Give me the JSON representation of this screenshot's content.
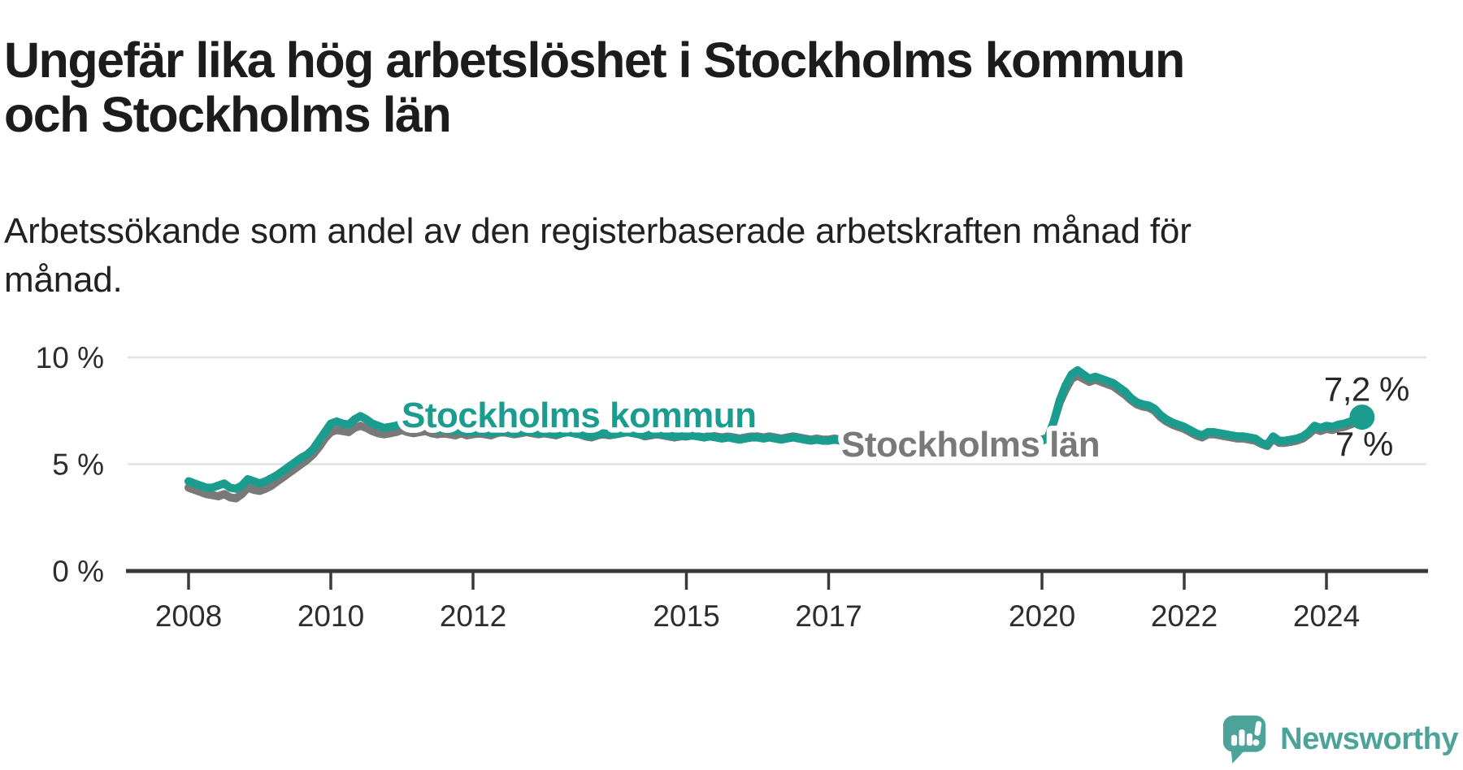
{
  "header": {
    "title_lines": [
      "Ungefär lika hög arbetslöshet i Stockholms kommun",
      "och Stockholms län"
    ],
    "subtitle_lines": [
      "Arbetssökande som andel av den registerbaserade arbetskraften månad för",
      "månad."
    ]
  },
  "chart_data": {
    "type": "line",
    "unit": "%",
    "x_start_year": 2008,
    "points_per_year": 12,
    "x_range": [
      2008,
      2024.5
    ],
    "ylim": [
      0,
      10.5
    ],
    "grid": "horizontal",
    "legend_position": "inline-labels",
    "y_ticks": [
      {
        "value": 10,
        "label": "10 %"
      },
      {
        "value": 5,
        "label": "5 %"
      },
      {
        "value": 0,
        "label": "0 %"
      }
    ],
    "x_ticks": [
      {
        "year": 2008,
        "label": "2008"
      },
      {
        "year": 2010,
        "label": "2010"
      },
      {
        "year": 2012,
        "label": "2012"
      },
      {
        "year": 2015,
        "label": "2015"
      },
      {
        "year": 2017,
        "label": "2017"
      },
      {
        "year": 2020,
        "label": "2020"
      },
      {
        "year": 2022,
        "label": "2022"
      },
      {
        "year": 2024,
        "label": "2024"
      }
    ],
    "series": [
      {
        "id": "kommun",
        "name": "Stockholms kommun",
        "color": "#1A9D8E",
        "values": [
          4.2,
          4.1,
          4.0,
          3.9,
          3.9,
          4.0,
          4.1,
          3.9,
          3.85,
          4.0,
          4.3,
          4.2,
          4.1,
          4.2,
          4.35,
          4.5,
          4.7,
          4.9,
          5.1,
          5.3,
          5.45,
          5.7,
          6.1,
          6.5,
          6.9,
          7.0,
          6.9,
          6.85,
          7.1,
          7.25,
          7.1,
          6.9,
          6.8,
          6.7,
          6.75,
          6.8,
          6.9,
          6.8,
          6.7,
          6.75,
          6.8,
          6.7,
          6.6,
          6.65,
          6.6,
          6.55,
          6.6,
          6.5,
          6.5,
          6.55,
          6.5,
          6.45,
          6.5,
          6.55,
          6.5,
          6.45,
          6.5,
          6.55,
          6.5,
          6.45,
          6.5,
          6.45,
          6.4,
          6.45,
          6.5,
          6.45,
          6.4,
          6.35,
          6.3,
          6.4,
          6.45,
          6.4,
          6.4,
          6.45,
          6.5,
          6.45,
          6.4,
          6.35,
          6.4,
          6.45,
          6.4,
          6.35,
          6.3,
          6.35,
          6.3,
          6.35,
          6.3,
          6.25,
          6.3,
          6.25,
          6.2,
          6.25,
          6.2,
          6.15,
          6.2,
          6.25,
          6.25,
          6.2,
          6.25,
          6.2,
          6.15,
          6.2,
          6.25,
          6.2,
          6.15,
          6.1,
          6.15,
          6.1,
          6.1,
          6.15,
          6.1,
          6.05,
          6.1,
          6.15,
          6.1,
          6.05,
          6.0,
          6.05,
          6.1,
          6.05,
          6.0,
          6.05,
          6.0,
          5.95,
          6.0,
          6.05,
          6.0,
          5.95,
          6.0,
          6.05,
          6.0,
          6.0,
          6.0,
          6.05,
          6.1,
          6.05,
          6.0,
          6.05,
          6.1,
          6.15,
          6.1,
          6.1,
          6.15,
          6.1,
          6.1,
          6.2,
          7.0,
          8.0,
          8.7,
          9.2,
          9.4,
          9.2,
          9.0,
          9.1,
          9.0,
          8.9,
          8.8,
          8.6,
          8.4,
          8.1,
          7.9,
          7.8,
          7.75,
          7.6,
          7.3,
          7.1,
          6.95,
          6.85,
          6.75,
          6.6,
          6.45,
          6.35,
          6.5,
          6.5,
          6.45,
          6.4,
          6.35,
          6.3,
          6.3,
          6.25,
          6.2,
          6.0,
          5.9,
          6.3,
          6.1,
          6.1,
          6.15,
          6.2,
          6.3,
          6.5,
          6.8,
          6.7,
          6.8,
          6.75,
          6.85,
          6.9,
          7.0,
          7.1,
          7.2
        ]
      },
      {
        "id": "lan",
        "name": "Stockholms län",
        "color": "#797979",
        "values": [
          3.9,
          3.8,
          3.7,
          3.6,
          3.55,
          3.5,
          3.6,
          3.45,
          3.4,
          3.6,
          3.9,
          3.8,
          3.75,
          3.85,
          4.0,
          4.2,
          4.4,
          4.6,
          4.8,
          5.0,
          5.2,
          5.45,
          5.8,
          6.2,
          6.5,
          6.6,
          6.55,
          6.5,
          6.7,
          6.8,
          6.7,
          6.55,
          6.45,
          6.4,
          6.45,
          6.5,
          6.6,
          6.5,
          6.45,
          6.5,
          6.55,
          6.45,
          6.4,
          6.45,
          6.4,
          6.35,
          6.45,
          6.35,
          6.4,
          6.45,
          6.4,
          6.35,
          6.45,
          6.5,
          6.45,
          6.4,
          6.45,
          6.5,
          6.45,
          6.4,
          6.45,
          6.4,
          6.35,
          6.45,
          6.5,
          6.45,
          6.4,
          6.3,
          6.25,
          6.35,
          6.4,
          6.35,
          6.4,
          6.45,
          6.5,
          6.45,
          6.4,
          6.3,
          6.35,
          6.4,
          6.35,
          6.3,
          6.25,
          6.3,
          6.3,
          6.35,
          6.3,
          6.25,
          6.35,
          6.3,
          6.25,
          6.3,
          6.25,
          6.2,
          6.25,
          6.3,
          6.3,
          6.25,
          6.3,
          6.25,
          6.2,
          6.25,
          6.3,
          6.25,
          6.2,
          6.15,
          6.2,
          6.15,
          6.15,
          6.2,
          6.15,
          6.1,
          6.15,
          6.2,
          6.15,
          6.1,
          6.05,
          6.1,
          6.15,
          6.1,
          6.05,
          6.1,
          6.05,
          6.0,
          6.05,
          6.1,
          6.05,
          6.0,
          6.05,
          6.1,
          6.05,
          6.05,
          6.05,
          6.1,
          6.15,
          6.1,
          6.05,
          6.1,
          6.15,
          6.2,
          6.15,
          6.15,
          6.2,
          6.15,
          6.15,
          6.25,
          7.0,
          7.9,
          8.5,
          9.0,
          9.15,
          9.0,
          8.85,
          8.95,
          8.85,
          8.75,
          8.65,
          8.45,
          8.25,
          8.0,
          7.8,
          7.7,
          7.65,
          7.5,
          7.2,
          7.0,
          6.85,
          6.75,
          6.65,
          6.5,
          6.35,
          6.25,
          6.4,
          6.4,
          6.35,
          6.3,
          6.25,
          6.2,
          6.2,
          6.15,
          6.1,
          5.95,
          5.85,
          6.2,
          6.0,
          6.0,
          6.05,
          6.1,
          6.2,
          6.4,
          6.65,
          6.55,
          6.65,
          6.6,
          6.7,
          6.75,
          6.85,
          6.95,
          7.0
        ]
      }
    ],
    "end_labels": {
      "kommun": "7,2 %",
      "lan": "7 %"
    }
  },
  "branding": {
    "logo_text": "Newsworthy",
    "color": "#4BA39A"
  }
}
